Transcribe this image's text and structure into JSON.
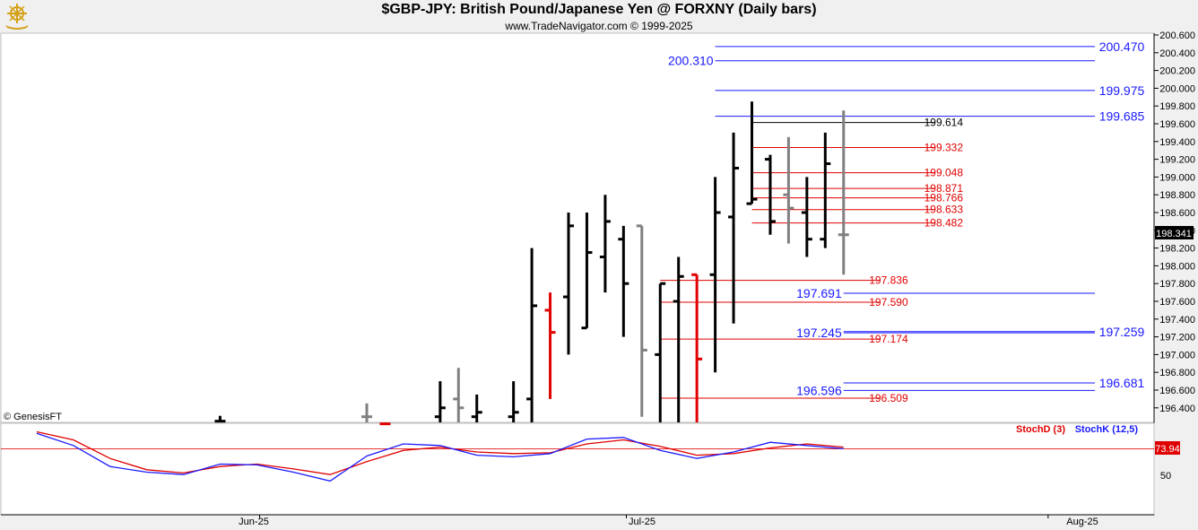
{
  "header": {
    "title": "$GBP-JPY:  British Pound/Japanese Yen @ FORXNY  (Daily bars)",
    "subtitle": "www.TradeNavigator.com © 1999-2025",
    "logo_icon": "trade-navigator-ship-wheel-icon"
  },
  "watermark": "© GenesisFT",
  "colors": {
    "up": "#000000",
    "down": "#808080",
    "highlight": "#e00000",
    "blue_level": "#1a1aff",
    "red_level": "#e00000",
    "stochD": "#e00000",
    "stochK": "#1a1aff"
  },
  "chart_data": [
    {
      "type": "ohlc",
      "title": "$GBP-JPY:  British Pound/Japanese Yen @ FORXNY  (Daily bars)",
      "y_axis": {
        "min": 196.2,
        "max": 200.7,
        "ticks": [
          "200.600",
          "200.400",
          "200.200",
          "200.000",
          "199.800",
          "199.600",
          "199.400",
          "199.200",
          "199.000",
          "198.800",
          "198.600",
          "198.400",
          "198.200",
          "198.000",
          "197.800",
          "197.600",
          "197.400",
          "197.200",
          "197.000",
          "196.800",
          "196.600",
          "196.400"
        ]
      },
      "x_axis": {
        "labels": [
          {
            "text": "Jun-25",
            "x": 20
          },
          {
            "text": "Jul-25",
            "x": 40
          },
          {
            "text": "Aug-25",
            "x": 63
          }
        ]
      },
      "last_price": "198.341",
      "bars": [
        {
          "x": 11,
          "h": 196.31,
          "l": 196.2,
          "o": 196.25,
          "c": 196.25,
          "color": "up"
        },
        {
          "x": 19,
          "h": 196.45,
          "l": 196.2,
          "o": 196.3,
          "c": 196.3,
          "color": "down"
        },
        {
          "x": 20,
          "h": 196.23,
          "l": 196.2,
          "o": 196.22,
          "c": 196.22,
          "color": "red"
        },
        {
          "x": 23,
          "h": 196.7,
          "l": 196.2,
          "o": 196.3,
          "c": 196.4,
          "color": "up"
        },
        {
          "x": 24,
          "h": 196.85,
          "l": 196.2,
          "o": 196.5,
          "c": 196.4,
          "color": "down"
        },
        {
          "x": 25,
          "h": 196.55,
          "l": 196.2,
          "o": 196.3,
          "c": 196.35,
          "color": "up"
        },
        {
          "x": 27,
          "h": 196.7,
          "l": 196.2,
          "o": 196.3,
          "c": 196.35,
          "color": "up"
        },
        {
          "x": 28,
          "h": 198.2,
          "l": 196.2,
          "o": 196.5,
          "c": 197.55,
          "color": "up"
        },
        {
          "x": 29,
          "h": 197.7,
          "l": 196.5,
          "o": 197.5,
          "c": 197.25,
          "color": "red"
        },
        {
          "x": 30,
          "h": 198.6,
          "l": 197.0,
          "o": 197.65,
          "c": 198.45,
          "color": "up"
        },
        {
          "x": 31,
          "h": 198.6,
          "l": 197.3,
          "o": 197.3,
          "c": 198.15,
          "color": "up"
        },
        {
          "x": 32,
          "h": 198.8,
          "l": 197.7,
          "o": 198.1,
          "c": 198.5,
          "color": "up"
        },
        {
          "x": 33,
          "h": 198.45,
          "l": 197.2,
          "o": 198.3,
          "c": 197.8,
          "color": "up"
        },
        {
          "x": 34,
          "h": 198.45,
          "l": 196.3,
          "o": 198.45,
          "c": 197.05,
          "color": "down"
        },
        {
          "x": 35,
          "h": 197.8,
          "l": 196.2,
          "o": 197.0,
          "c": 197.8,
          "color": "up"
        },
        {
          "x": 36,
          "h": 198.1,
          "l": 196.2,
          "o": 197.6,
          "c": 197.88,
          "color": "up"
        },
        {
          "x": 37,
          "h": 197.9,
          "l": 196.2,
          "o": 197.9,
          "c": 196.95,
          "color": "red"
        },
        {
          "x": 38,
          "h": 199.0,
          "l": 196.8,
          "o": 197.9,
          "c": 198.6,
          "color": "up"
        },
        {
          "x": 39,
          "h": 199.5,
          "l": 197.35,
          "o": 198.55,
          "c": 199.1,
          "color": "up"
        },
        {
          "x": 40,
          "h": 199.85,
          "l": 198.7,
          "o": 198.7,
          "c": 198.75,
          "color": "up"
        },
        {
          "x": 41,
          "h": 199.25,
          "l": 198.35,
          "o": 199.2,
          "c": 198.5,
          "color": "up"
        },
        {
          "x": 42,
          "h": 199.45,
          "l": 198.25,
          "o": 198.8,
          "c": 198.65,
          "color": "down"
        },
        {
          "x": 43,
          "h": 199.0,
          "l": 198.1,
          "o": 198.6,
          "c": 198.3,
          "color": "up"
        },
        {
          "x": 44,
          "h": 199.5,
          "l": 198.2,
          "o": 198.3,
          "c": 199.15,
          "color": "up"
        },
        {
          "x": 45,
          "h": 199.75,
          "l": 197.9,
          "o": 198.35,
          "c": 198.35,
          "color": "down"
        }
      ],
      "levels": [
        {
          "value": 200.47,
          "label": "200.470",
          "color": "blue",
          "x1": 38,
          "x2": 60.5,
          "label_side": "right"
        },
        {
          "value": 200.31,
          "label": "200.310",
          "color": "blue",
          "x1": 38,
          "x2": 60.5,
          "label_side": "left"
        },
        {
          "value": 199.975,
          "label": "199.975",
          "color": "blue",
          "x1": 38,
          "x2": 60.5,
          "label_side": "right"
        },
        {
          "value": 199.685,
          "label": "199.685",
          "color": "blue",
          "x1": 38,
          "x2": 60.5,
          "label_side": "right"
        },
        {
          "value": 199.614,
          "label": "199.614",
          "color": "black",
          "x1": 40,
          "x2": 50,
          "label_side": "end"
        },
        {
          "value": 199.332,
          "label": "199.332",
          "color": "red",
          "x1": 40,
          "x2": 50,
          "label_side": "end"
        },
        {
          "value": 199.048,
          "label": "199.048",
          "color": "red",
          "x1": 40,
          "x2": 50,
          "label_side": "end"
        },
        {
          "value": 198.871,
          "label": "198.871",
          "color": "red",
          "x1": 40,
          "x2": 50,
          "label_side": "end"
        },
        {
          "value": 198.766,
          "label": "198.766",
          "color": "red",
          "x1": 40,
          "x2": 50,
          "label_side": "end"
        },
        {
          "value": 198.633,
          "label": "198.633",
          "color": "red",
          "x1": 40,
          "x2": 50,
          "label_side": "end"
        },
        {
          "value": 198.482,
          "label": "198.482",
          "color": "red",
          "x1": 40,
          "x2": 50,
          "label_side": "end"
        },
        {
          "value": 197.836,
          "label": "197.836",
          "color": "red",
          "x1": 35,
          "x2": 47,
          "label_side": "end"
        },
        {
          "value": 197.691,
          "label": "197.691",
          "color": "blue",
          "x1": 45,
          "x2": 60.5,
          "label_side": "left"
        },
        {
          "value": 197.59,
          "label": "197.590",
          "color": "red",
          "x1": 35,
          "x2": 47,
          "label_side": "end"
        },
        {
          "value": 197.259,
          "label": "197.259",
          "color": "blue",
          "x1": 45,
          "x2": 60.5,
          "label_side": "right"
        },
        {
          "value": 197.245,
          "label": "197.245",
          "color": "blue",
          "x1": 45,
          "x2": 60.5,
          "label_side": "left"
        },
        {
          "value": 197.174,
          "label": "197.174",
          "color": "red",
          "x1": 35,
          "x2": 47,
          "label_side": "end"
        },
        {
          "value": 196.681,
          "label": "196.681",
          "color": "blue",
          "x1": 45,
          "x2": 60.5,
          "label_side": "right"
        },
        {
          "value": 196.596,
          "label": "196.596",
          "color": "blue",
          "x1": 45,
          "x2": 60.5,
          "label_side": "left"
        },
        {
          "value": 196.509,
          "label": "196.509",
          "color": "red",
          "x1": 35,
          "x2": 47,
          "label_side": "end"
        }
      ]
    },
    {
      "type": "line",
      "title": "",
      "y_axis": {
        "min": 0,
        "max": 100,
        "ticks": [
          "50"
        ]
      },
      "last_value": "73.94",
      "reference_line": 73.94,
      "series": [
        {
          "name": "StochD (3)",
          "color": "red",
          "x": [
            1,
            3,
            5,
            7,
            9,
            11,
            13,
            15,
            17,
            19,
            21,
            23,
            25,
            27,
            29,
            31,
            33,
            35,
            37,
            39,
            41,
            43,
            45
          ],
          "values": [
            95,
            85,
            62,
            48,
            44,
            52,
            55,
            49,
            42,
            58,
            72,
            76,
            70,
            68,
            69,
            80,
            85,
            77,
            66,
            68,
            75,
            80,
            76
          ]
        },
        {
          "name": "StochK (12,5)",
          "color": "blue",
          "x": [
            1,
            3,
            5,
            7,
            9,
            11,
            13,
            15,
            17,
            19,
            21,
            23,
            25,
            27,
            29,
            31,
            33,
            35,
            37,
            39,
            41,
            43,
            45
          ],
          "values": [
            93,
            78,
            52,
            45,
            42,
            55,
            54,
            45,
            34,
            65,
            80,
            78,
            66,
            64,
            68,
            86,
            88,
            72,
            62,
            70,
            82,
            78,
            74
          ]
        }
      ]
    }
  ]
}
